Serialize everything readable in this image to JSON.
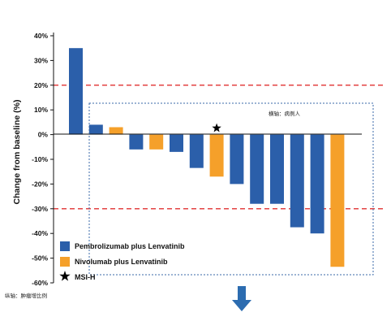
{
  "chart_data": {
    "type": "bar",
    "title": "",
    "xlabel": "",
    "ylabel": "Change from baseline (%)",
    "ylim": [
      -60,
      40
    ],
    "yticks": [
      {
        "value": 40,
        "label": "40%"
      },
      {
        "value": 30,
        "label": "30%"
      },
      {
        "value": 20,
        "label": "20%"
      },
      {
        "value": 10,
        "label": "10%"
      },
      {
        "value": 0,
        "label": "0%"
      },
      {
        "value": -10,
        "label": "-10%"
      },
      {
        "value": -20,
        "label": "-20%"
      },
      {
        "value": -30,
        "label": "-30%"
      },
      {
        "value": -40,
        "label": "-40%"
      },
      {
        "value": -50,
        "label": "-50%"
      },
      {
        "value": -60,
        "label": "-60%"
      }
    ],
    "reference_lines": [
      20,
      -30
    ],
    "series": [
      {
        "name": "Pembrolizumab plus Lenvatinib",
        "color": "#2b5faa"
      },
      {
        "name": "Nivolumab plus Lenvatinib",
        "color": "#f5a02a"
      }
    ],
    "bars": [
      {
        "value": 35,
        "series": 0,
        "msi_h": false
      },
      {
        "value": 4,
        "series": 0,
        "msi_h": false
      },
      {
        "value": 3,
        "series": 1,
        "msi_h": false
      },
      {
        "value": -6,
        "series": 0,
        "msi_h": false
      },
      {
        "value": -6,
        "series": 1,
        "msi_h": false
      },
      {
        "value": -7,
        "series": 0,
        "msi_h": false
      },
      {
        "value": -13.5,
        "series": 0,
        "msi_h": false
      },
      {
        "value": -17,
        "series": 1,
        "msi_h": true
      },
      {
        "value": -20,
        "series": 0,
        "msi_h": false
      },
      {
        "value": -28,
        "series": 0,
        "msi_h": false
      },
      {
        "value": -28,
        "series": 0,
        "msi_h": false
      },
      {
        "value": -37.5,
        "series": 0,
        "msi_h": false
      },
      {
        "value": -40,
        "series": 0,
        "msi_h": false
      },
      {
        "value": -53.5,
        "series": 1,
        "msi_h": false
      }
    ],
    "legend": {
      "placement": "bottom-left",
      "entries": [
        "Pembrolizumab plus Lenvatinib",
        "Nivolumab plus Lenvatinib",
        "MSI-H"
      ]
    },
    "annotations": {
      "box_label": "横轴：病例人",
      "axis_note": "纵轴：肿瘤增比例"
    },
    "colors": {
      "pembro": "#2b5faa",
      "nivo": "#f5a02a",
      "reference": "#e03030",
      "box": "#3a6aa8",
      "arrow": "#2c6cb0"
    }
  }
}
